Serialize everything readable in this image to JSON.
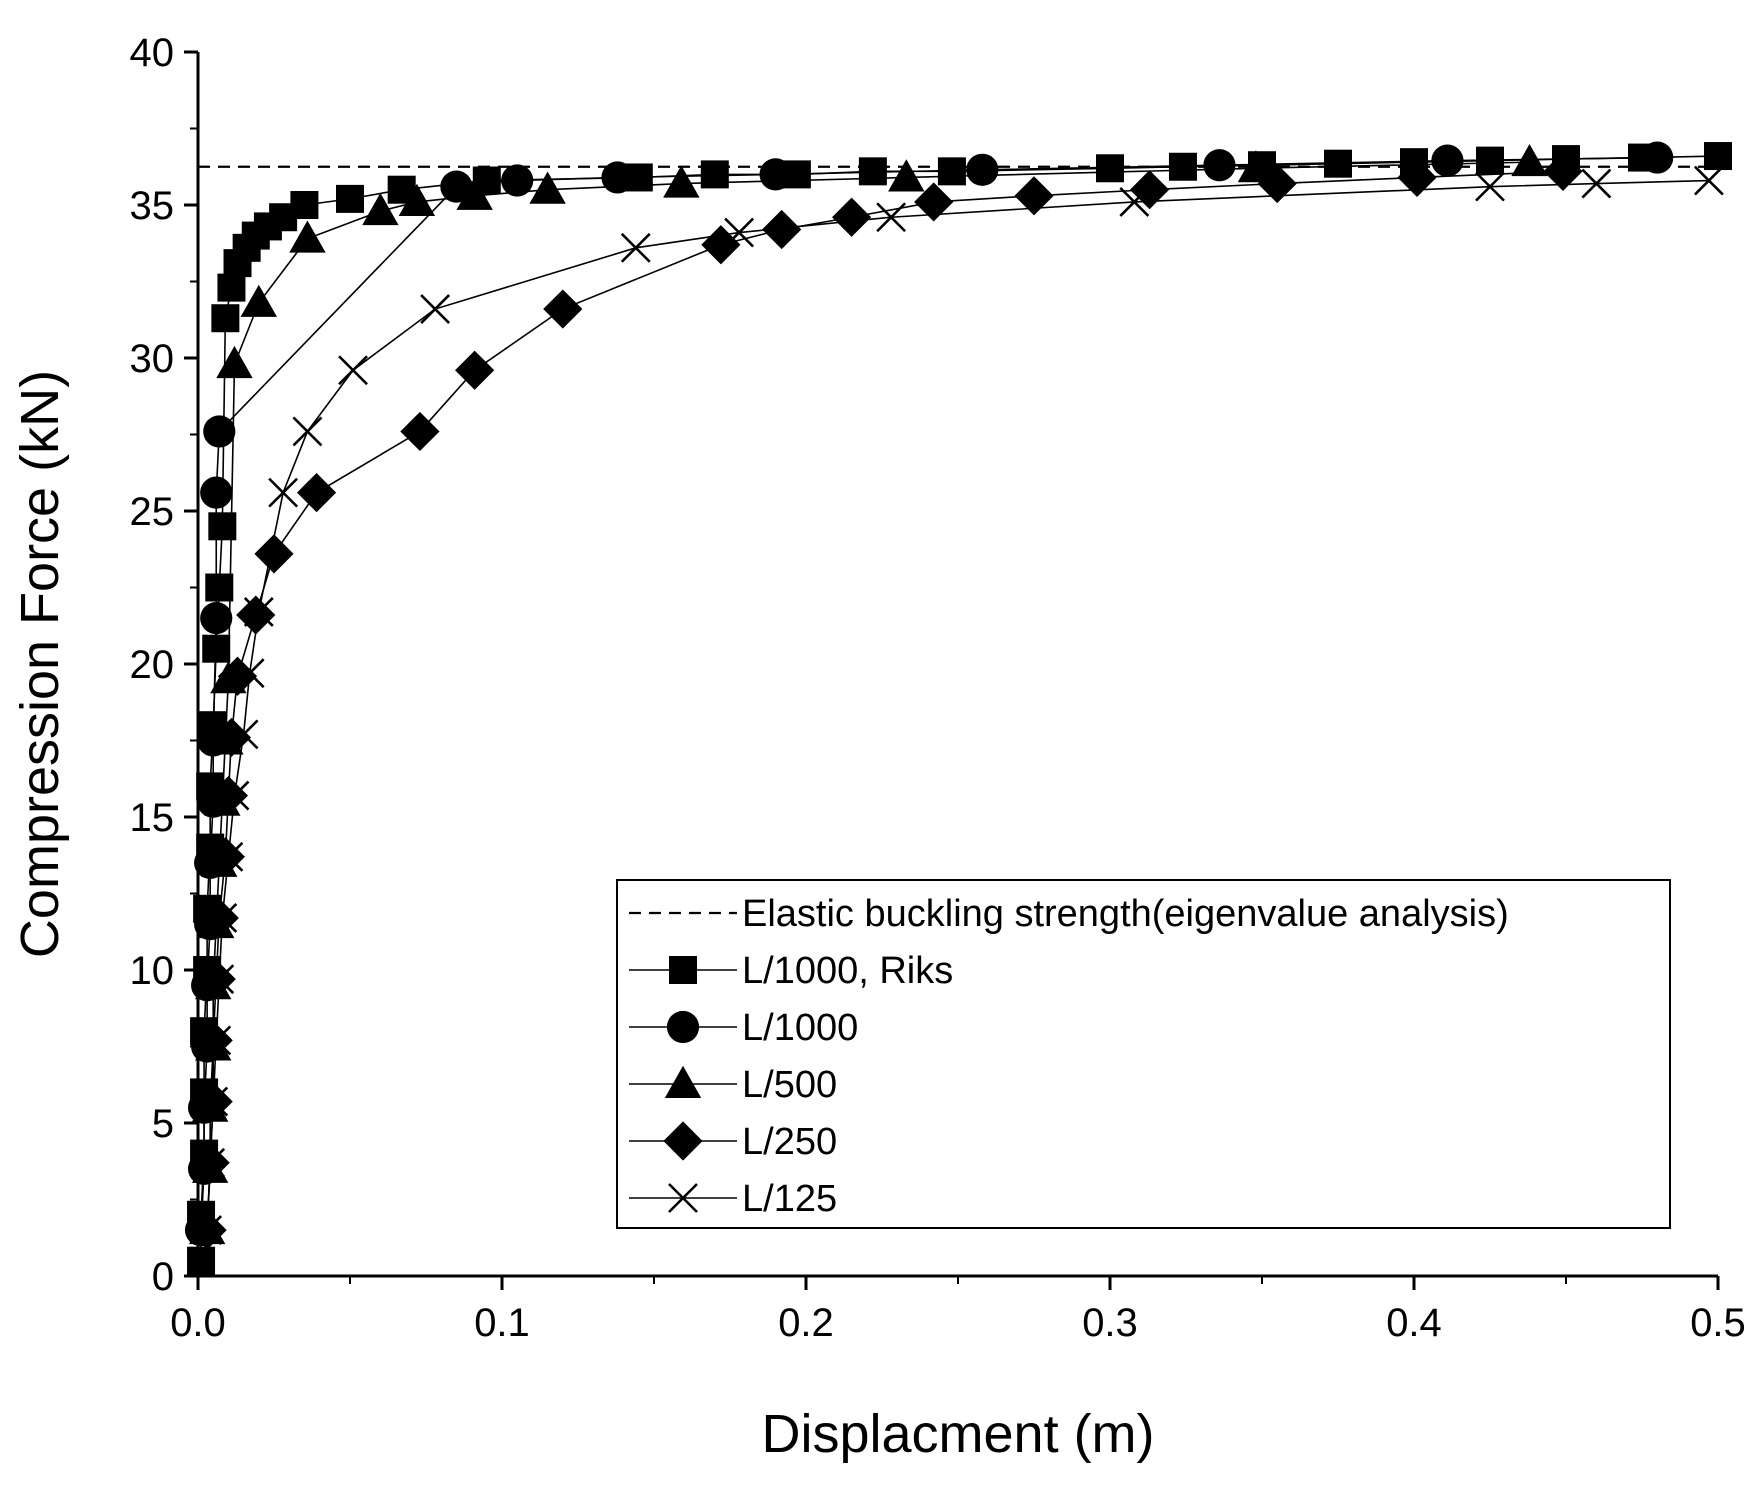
{
  "chart_data": {
    "type": "line",
    "title": "",
    "xlabel": "Displacment (m)",
    "ylabel": "Compression Force (kN)",
    "xlim": [
      0,
      0.5
    ],
    "ylim": [
      0,
      40
    ],
    "xticks": [
      "0.0",
      "0.1",
      "0.2",
      "0.3",
      "0.4",
      "0.5"
    ],
    "yticks": [
      "0",
      "5",
      "10",
      "15",
      "20",
      "25",
      "30",
      "35",
      "40"
    ],
    "grid": false,
    "legend_position": "bottom-right",
    "reference_line": {
      "name": "Elastic buckling strength(eigenvalue analysis)",
      "y": 36.25,
      "style": "dashed"
    },
    "series": [
      {
        "name": "L/1000, Riks",
        "marker": "square",
        "x": [
          0.001,
          0.001,
          0.002,
          0.002,
          0.002,
          0.003,
          0.003,
          0.004,
          0.004,
          0.005,
          0.006,
          0.007,
          0.008,
          0.009,
          0.011,
          0.013,
          0.016,
          0.019,
          0.023,
          0.028,
          0.035,
          0.05,
          0.067,
          0.095,
          0.145,
          0.17,
          0.197,
          0.222,
          0.248,
          0.3,
          0.324,
          0.35,
          0.375,
          0.4,
          0.425,
          0.45,
          0.475,
          0.5
        ],
        "y": [
          0.5,
          2.0,
          4.0,
          6.0,
          8.0,
          10.0,
          12.0,
          14.0,
          16.0,
          18.0,
          20.5,
          22.5,
          24.5,
          31.3,
          32.3,
          33.1,
          33.6,
          34.0,
          34.3,
          34.6,
          35.0,
          35.2,
          35.5,
          35.8,
          35.9,
          36.0,
          36.0,
          36.1,
          36.1,
          36.2,
          36.25,
          36.3,
          36.35,
          36.4,
          36.45,
          36.5,
          36.55,
          36.6
        ]
      },
      {
        "name": "L/1000",
        "marker": "circle",
        "x": [
          0.001,
          0.002,
          0.002,
          0.003,
          0.003,
          0.004,
          0.004,
          0.005,
          0.005,
          0.006,
          0.006,
          0.007,
          0.085,
          0.105,
          0.138,
          0.19,
          0.258,
          0.336,
          0.411,
          0.48
        ],
        "y": [
          1.5,
          3.5,
          5.5,
          7.5,
          9.5,
          11.5,
          13.5,
          15.5,
          17.5,
          21.5,
          25.6,
          27.6,
          35.6,
          35.8,
          35.9,
          36.0,
          36.15,
          36.3,
          36.45,
          36.55
        ]
      },
      {
        "name": "L/500",
        "marker": "triangle",
        "x": [
          0.003,
          0.004,
          0.004,
          0.005,
          0.005,
          0.006,
          0.007,
          0.008,
          0.009,
          0.01,
          0.012,
          0.02,
          0.036,
          0.06,
          0.072,
          0.091,
          0.115,
          0.159,
          0.233,
          0.348,
          0.438
        ],
        "y": [
          1.5,
          3.5,
          5.5,
          7.5,
          9.5,
          11.5,
          13.5,
          15.5,
          17.5,
          19.5,
          29.8,
          31.8,
          33.9,
          34.8,
          35.1,
          35.3,
          35.5,
          35.7,
          35.9,
          36.2,
          36.4
        ]
      },
      {
        "name": "L/250",
        "marker": "diamond",
        "x": [
          0.003,
          0.004,
          0.005,
          0.005,
          0.006,
          0.007,
          0.009,
          0.01,
          0.011,
          0.013,
          0.019,
          0.025,
          0.039,
          0.073,
          0.091,
          0.12,
          0.172,
          0.192,
          0.215,
          0.242,
          0.275,
          0.313,
          0.355,
          0.401,
          0.449
        ],
        "y": [
          1.5,
          3.7,
          5.7,
          7.7,
          9.7,
          11.7,
          13.7,
          15.7,
          17.6,
          19.6,
          21.6,
          23.6,
          25.6,
          27.6,
          29.6,
          31.6,
          33.7,
          34.2,
          34.6,
          35.1,
          35.3,
          35.5,
          35.7,
          35.9,
          36.1
        ]
      },
      {
        "name": "L/125",
        "marker": "x",
        "x": [
          0.003,
          0.004,
          0.005,
          0.006,
          0.007,
          0.008,
          0.01,
          0.012,
          0.015,
          0.017,
          0.02,
          0.028,
          0.036,
          0.051,
          0.078,
          0.144,
          0.178,
          0.228,
          0.308,
          0.425,
          0.46,
          0.497
        ],
        "y": [
          1.5,
          3.7,
          5.7,
          7.7,
          9.7,
          11.7,
          13.7,
          15.7,
          17.7,
          19.7,
          21.7,
          25.6,
          27.6,
          29.6,
          31.6,
          33.6,
          34.1,
          34.6,
          35.1,
          35.6,
          35.7,
          35.8
        ]
      }
    ]
  }
}
